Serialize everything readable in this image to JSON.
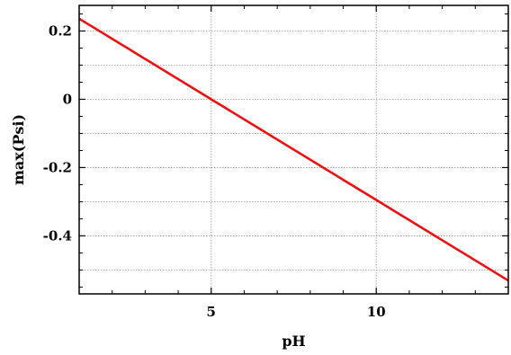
{
  "chart_data": {
    "type": "line",
    "title": "",
    "xlabel": "pH",
    "ylabel": "max(Psi)",
    "xlim": [
      1,
      14
    ],
    "ylim": [
      -0.57,
      0.275
    ],
    "x_ticks": [
      5,
      10
    ],
    "x_tick_labels": [
      "5",
      "10"
    ],
    "y_ticks": [
      -0.4,
      -0.2,
      0,
      0.2
    ],
    "y_tick_labels": [
      "-0.4",
      "-0.2",
      "0",
      "0.2"
    ],
    "grid": true,
    "legend": "none",
    "series": [
      {
        "color": "#ee1111",
        "x": [
          1,
          5,
          10,
          14
        ],
        "y": [
          0.236,
          0.0,
          -0.295,
          -0.531
        ]
      }
    ]
  }
}
